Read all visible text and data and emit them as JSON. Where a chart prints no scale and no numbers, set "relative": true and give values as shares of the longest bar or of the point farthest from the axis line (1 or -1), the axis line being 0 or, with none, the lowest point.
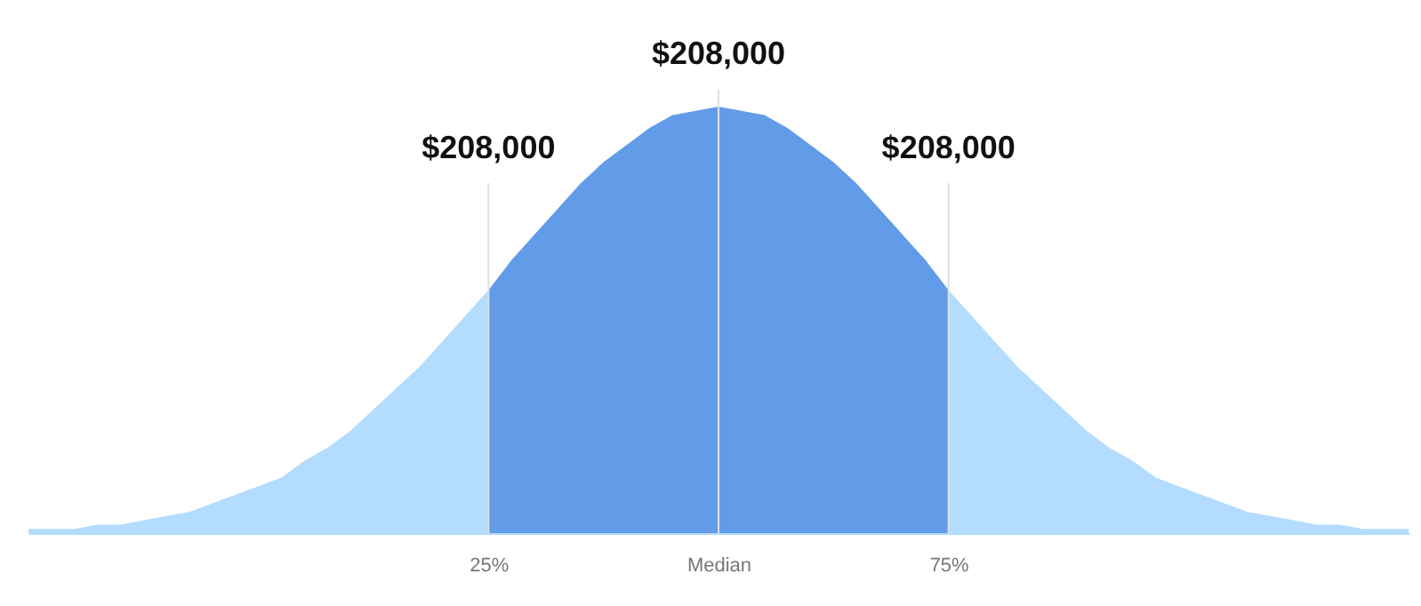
{
  "chart_data": {
    "type": "area",
    "relative": true,
    "categories": [
      null,
      null,
      null,
      null,
      null,
      null,
      null,
      null,
      null,
      null,
      null,
      null,
      null,
      null,
      null,
      null,
      null,
      null,
      null,
      null,
      "25%",
      null,
      null,
      null,
      null,
      null,
      null,
      null,
      null,
      null,
      "Median",
      null,
      null,
      null,
      null,
      null,
      null,
      null,
      null,
      null,
      "75%",
      null,
      null,
      null,
      null,
      null,
      null,
      null,
      null,
      null,
      null,
      null,
      null,
      null,
      null,
      null,
      null,
      null,
      null,
      null,
      null
    ],
    "series": [
      {
        "color": "#b3dcff",
        "values": [
          0.01,
          0.01,
          0.01,
          0.02,
          0.02,
          0.03,
          0.04,
          0.05,
          0.07,
          0.09,
          0.11,
          0.13,
          0.17,
          0.2,
          0.24,
          0.29,
          0.34,
          0.39,
          0.45,
          0.51,
          0.57,
          null,
          null,
          null,
          null,
          null,
          null,
          null,
          null,
          null,
          null,
          null,
          null,
          null,
          null,
          null,
          null,
          null,
          null,
          null,
          0.57,
          0.51,
          0.45,
          0.39,
          0.34,
          0.29,
          0.24,
          0.2,
          0.17,
          0.13,
          0.11,
          0.09,
          0.07,
          0.05,
          0.04,
          0.03,
          0.02,
          0.02,
          0.01,
          0.01,
          0.01
        ]
      },
      {
        "color": "#629be8",
        "values": [
          null,
          null,
          null,
          null,
          null,
          null,
          null,
          null,
          null,
          null,
          null,
          null,
          null,
          null,
          null,
          null,
          null,
          null,
          null,
          null,
          0.57,
          0.64,
          0.7,
          0.76,
          0.82,
          0.87,
          0.91,
          0.95,
          0.98,
          0.99,
          1,
          0.99,
          0.98,
          0.95,
          0.91,
          0.87,
          0.82,
          0.76,
          0.7,
          0.64,
          0.57,
          null,
          null,
          null,
          null,
          null,
          null,
          null,
          null,
          null,
          null,
          null,
          null,
          null,
          null,
          null,
          null,
          null,
          null,
          null,
          null
        ]
      }
    ],
    "ref_lines": [
      {
        "axis": "x",
        "value": "25%",
        "color": "#e0e0e0"
      },
      {
        "axis": "x",
        "value": "Median",
        "color": "#e0e0e0"
      },
      {
        "axis": "x",
        "value": "75%",
        "color": "#e0e0e0"
      }
    ],
    "annotations": [
      "$208,000",
      "$208,000",
      "$208,000"
    ],
    "grid": false
  }
}
